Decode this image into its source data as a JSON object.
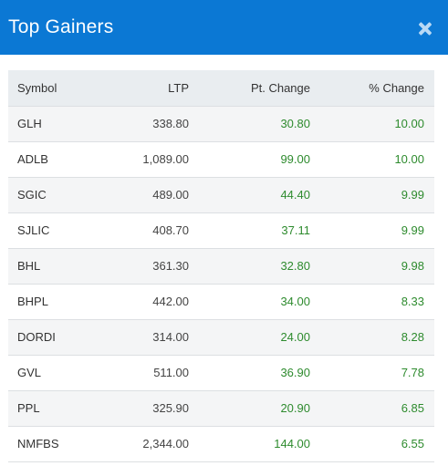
{
  "header": {
    "title": "Top Gainers",
    "close_icon": "close-icon"
  },
  "table": {
    "columns": [
      "Symbol",
      "LTP",
      "Pt. Change",
      "% Change"
    ],
    "rows": [
      {
        "symbol": "GLH",
        "ltp": "338.80",
        "pt_change": "30.80",
        "pct_change": "10.00"
      },
      {
        "symbol": "ADLB",
        "ltp": "1,089.00",
        "pt_change": "99.00",
        "pct_change": "10.00"
      },
      {
        "symbol": "SGIC",
        "ltp": "489.00",
        "pt_change": "44.40",
        "pct_change": "9.99"
      },
      {
        "symbol": "SJLIC",
        "ltp": "408.70",
        "pt_change": "37.11",
        "pct_change": "9.99"
      },
      {
        "symbol": "BHL",
        "ltp": "361.30",
        "pt_change": "32.80",
        "pct_change": "9.98"
      },
      {
        "symbol": "BHPL",
        "ltp": "442.00",
        "pt_change": "34.00",
        "pct_change": "8.33"
      },
      {
        "symbol": "DORDI",
        "ltp": "314.00",
        "pt_change": "24.00",
        "pct_change": "8.28"
      },
      {
        "symbol": "GVL",
        "ltp": "511.00",
        "pt_change": "36.90",
        "pct_change": "7.78"
      },
      {
        "symbol": "PPL",
        "ltp": "325.90",
        "pt_change": "20.90",
        "pct_change": "6.85"
      },
      {
        "symbol": "NMFBS",
        "ltp": "2,344.00",
        "pt_change": "144.00",
        "pct_change": "6.55"
      }
    ]
  },
  "colors": {
    "header_bg": "#0b78d4",
    "positive": "#2e8b2e",
    "header_row_bg": "#e9edf0"
  }
}
